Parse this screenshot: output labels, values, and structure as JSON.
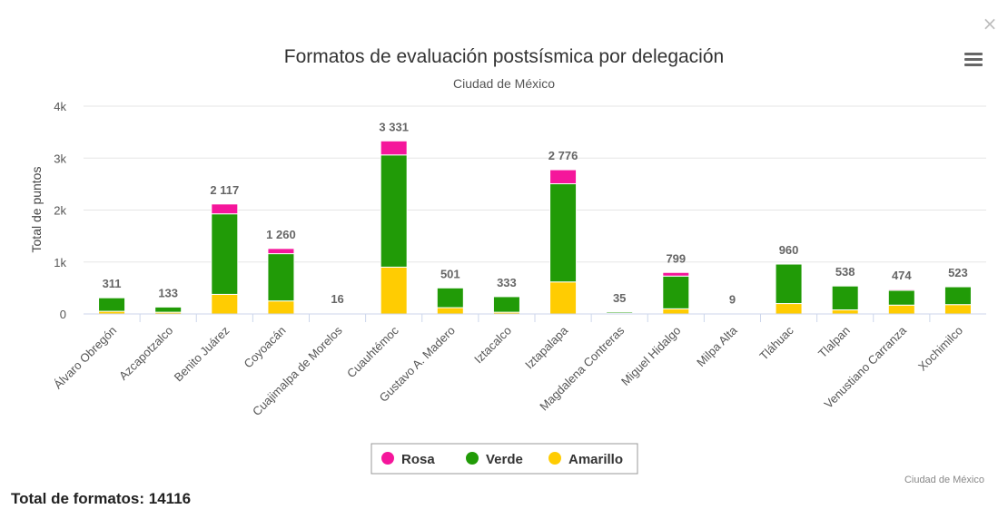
{
  "chart_data": {
    "type": "bar",
    "stacked": true,
    "title": "Formatos de evaluación postsísmica por delegación",
    "subtitle": "Ciudad de México",
    "xlabel": "",
    "ylabel": "Total de puntos",
    "ylim": [
      0,
      4000
    ],
    "yticks": [
      "0",
      "1k",
      "2k",
      "3k",
      "4k"
    ],
    "grid": true,
    "legend_position": "bottom-center",
    "credits": "Ciudad de México",
    "categories": [
      "Álvaro Obregón",
      "Azcapotzalco",
      "Benito Juárez",
      "Coyoacán",
      "Cuajimalpa de Morelos",
      "Cuauhtémoc",
      "Gustavo A. Madero",
      "Iztacalco",
      "Iztapalapa",
      "Magdalena Contreras",
      "Miguel Hidalgo",
      "Milpa Alta",
      "Tláhuac",
      "Tlalpan",
      "Venustiano Carranza",
      "Xochimilco"
    ],
    "totals": [
      311,
      133,
      2117,
      1260,
      16,
      3331,
      501,
      333,
      2776,
      35,
      799,
      9,
      960,
      538,
      474,
      523
    ],
    "total_labels": [
      "311",
      "133",
      "2 117",
      "1 260",
      "16",
      "3 331",
      "501",
      "333",
      "2 776",
      "35",
      "799",
      "9",
      "960",
      "538",
      "474",
      "523"
    ],
    "series": [
      {
        "name": "Rosa",
        "color": "#f5169b",
        "values": [
          0,
          0,
          190,
          100,
          0,
          270,
          0,
          0,
          270,
          0,
          70,
          0,
          0,
          0,
          20,
          0
        ]
      },
      {
        "name": "Verde",
        "color": "#219b07",
        "values": [
          260,
          100,
          1550,
          910,
          10,
          2160,
          380,
          300,
          1890,
          25,
          630,
          5,
          760,
          460,
          284,
          343
        ]
      },
      {
        "name": "Amarillo",
        "color": "#ffcc02",
        "values": [
          51,
          33,
          377,
          250,
          6,
          901,
          121,
          33,
          616,
          10,
          99,
          4,
          200,
          78,
          170,
          180
        ]
      }
    ]
  },
  "toolbar": {
    "menu_icon": "hamburger-menu-icon",
    "close_icon": "close-icon",
    "close_glyph": "×"
  },
  "footer": {
    "total_label": "Total de formatos:",
    "total_value": "14116"
  }
}
